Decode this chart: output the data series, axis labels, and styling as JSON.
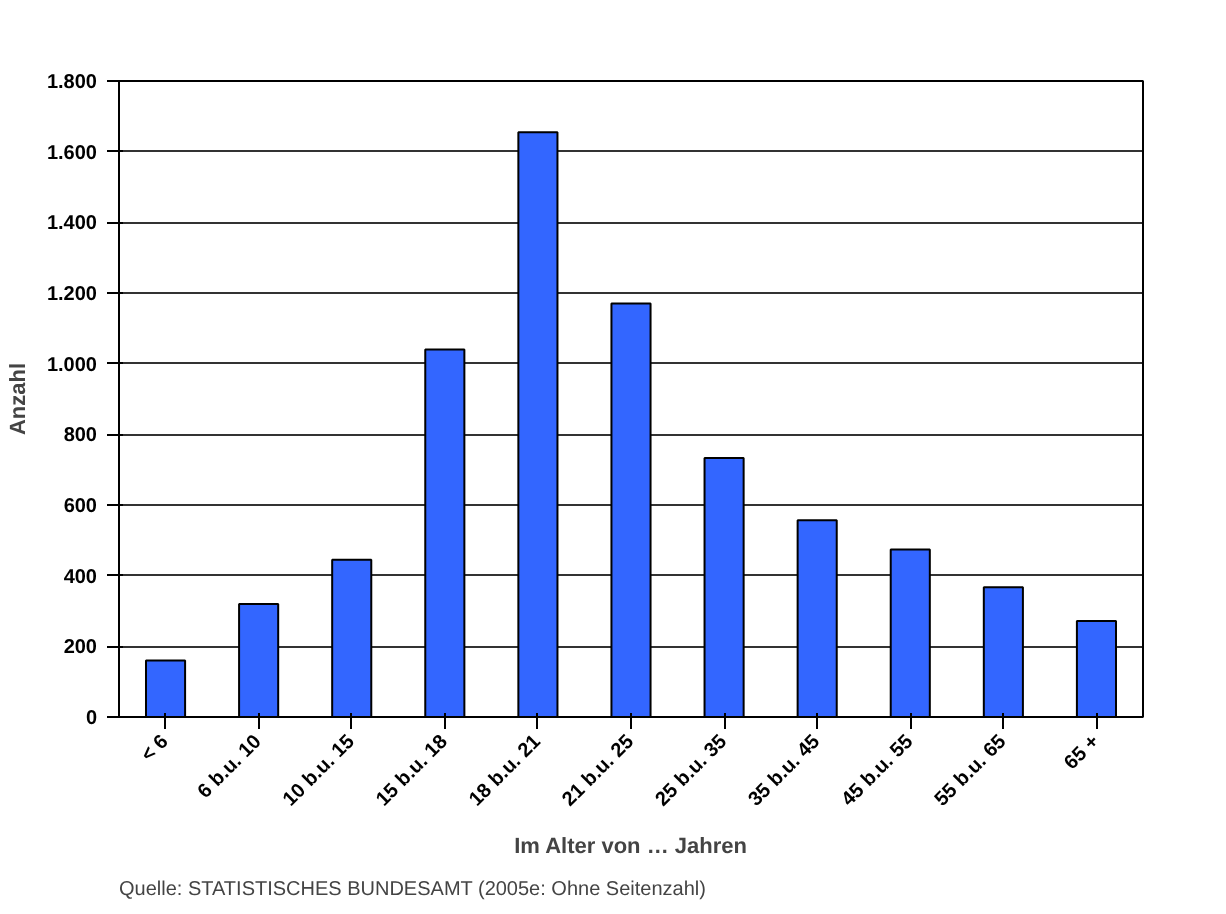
{
  "chart_data": {
    "type": "bar",
    "xlabel": "Im Alter von … Jahren",
    "ylabel": "Anzahl",
    "categories": [
      "< 6",
      "6 b.u. 10",
      "10 b.u. 15",
      "15 b.u. 18",
      "18 b.u. 21",
      "21 b.u. 25",
      "25 b.u. 35",
      "35 b.u. 45",
      "45 b.u. 55",
      "55 b.u. 65",
      "65 +"
    ],
    "values": [
      160,
      320,
      445,
      1040,
      1655,
      1170,
      733,
      557,
      474,
      367,
      272
    ],
    "color": "#3366ff",
    "ylim": [
      0,
      1800
    ],
    "yticks": [
      {
        "value": 0,
        "label": "0"
      },
      {
        "value": 200,
        "label": "200"
      },
      {
        "value": 400,
        "label": "400"
      },
      {
        "value": 600,
        "label": "600"
      },
      {
        "value": 800,
        "label": "800"
      },
      {
        "value": 1000,
        "label": "1.000"
      },
      {
        "value": 1200,
        "label": "1.200"
      },
      {
        "value": 1400,
        "label": "1.400"
      },
      {
        "value": 1600,
        "label": "1.600"
      },
      {
        "value": 1800,
        "label": "1.800"
      }
    ],
    "grid": "y",
    "annotations": [
      "Quelle: STATISTISCHES BUNDESAMT (2005e: Ohne Seitenzahl)"
    ]
  }
}
